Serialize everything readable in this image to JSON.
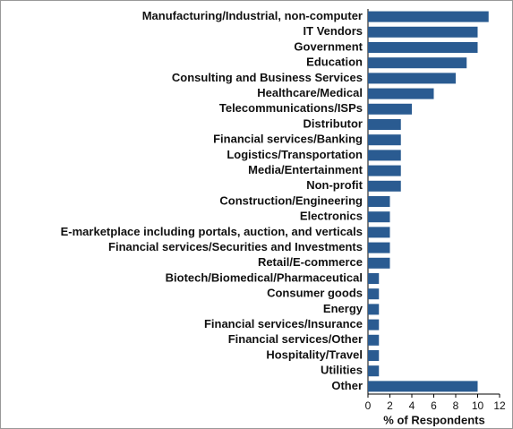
{
  "chart_data": {
    "type": "barh",
    "x_label": "% of Respondents",
    "categories": [
      "Manufacturing/Industrial, non-computer",
      "IT Vendors",
      "Government",
      "Education",
      "Consulting and Business Services",
      "Healthcare/Medical",
      "Telecommunications/ISPs",
      "Distributor",
      "Financial services/Banking",
      "Logistics/Transportation",
      "Media/Entertainment",
      "Non-profit",
      "Construction/Engineering",
      "Electronics",
      "E-marketplace including portals, auction, and verticals",
      "Financial services/Securities and Investments",
      "Retail/E-commerce",
      "Biotech/Biomedical/Pharmaceutical",
      "Consumer goods",
      "Energy",
      "Financial services/Insurance",
      "Financial services/Other",
      "Hospitality/Travel",
      "Utilities",
      "Other"
    ],
    "values": [
      11,
      10,
      10,
      9,
      8,
      6,
      4,
      3,
      3,
      3,
      3,
      3,
      2,
      2,
      2,
      2,
      2,
      1,
      1,
      1,
      1,
      1,
      1,
      1,
      10
    ],
    "color": "#2a5b91",
    "xlim": [
      0,
      12
    ],
    "xticks": [
      0,
      2,
      4,
      6,
      8,
      10,
      12
    ]
  }
}
